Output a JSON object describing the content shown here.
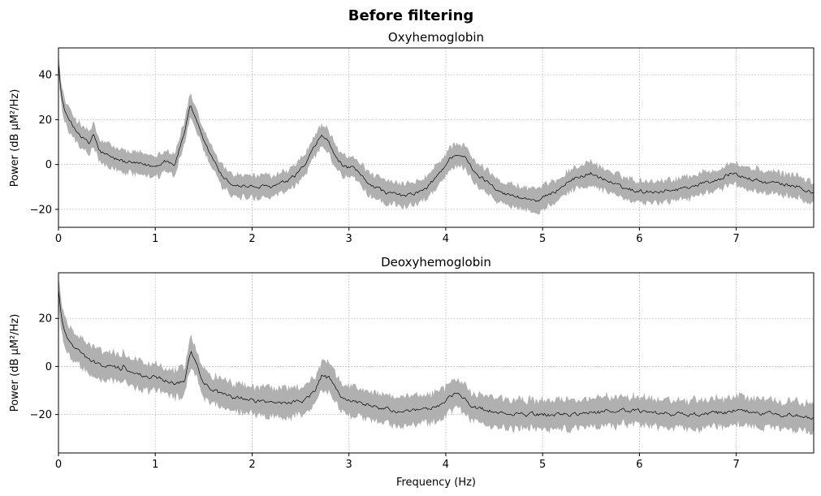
{
  "figure": {
    "suptitle": "Before filtering",
    "xlabel": "Frequency (Hz)"
  },
  "chart_data": [
    {
      "type": "line",
      "title": "Oxyhemoglobin",
      "xlabel": "",
      "ylabel": "Power (dB µM²/Hz)",
      "xlim": [
        0,
        7.8
      ],
      "ylim": [
        -28,
        52
      ],
      "xticks": [
        0,
        1,
        2,
        3,
        4,
        5,
        6,
        7
      ],
      "yticks": [
        -20,
        0,
        20,
        40
      ],
      "grid": true,
      "line_color": "#000000",
      "band_color": "#b0b0b0",
      "series_mean": {
        "x": [
          0,
          0.03,
          0.08,
          0.15,
          0.25,
          0.32,
          0.36,
          0.42,
          0.55,
          0.7,
          0.85,
          1.0,
          1.1,
          1.2,
          1.3,
          1.36,
          1.4,
          1.5,
          1.6,
          1.7,
          1.8,
          2.0,
          2.2,
          2.4,
          2.55,
          2.65,
          2.72,
          2.78,
          2.85,
          2.95,
          3.05,
          3.2,
          3.4,
          3.6,
          3.8,
          3.95,
          4.05,
          4.12,
          4.2,
          4.3,
          4.45,
          4.6,
          4.8,
          4.95,
          5.1,
          5.25,
          5.4,
          5.5,
          5.65,
          5.8,
          6.0,
          6.2,
          6.4,
          6.6,
          6.8,
          6.95,
          7.1,
          7.3,
          7.5,
          7.65,
          7.8
        ],
        "y": [
          46,
          30,
          22,
          17,
          12,
          9,
          14,
          6,
          3,
          1,
          0,
          -1,
          2,
          0,
          14,
          27,
          22,
          10,
          2,
          -6,
          -9,
          -10,
          -10,
          -7,
          0,
          8,
          13,
          11,
          4,
          -1,
          -2,
          -8,
          -13,
          -14,
          -11,
          -3,
          3,
          5,
          3,
          -4,
          -8,
          -13,
          -15,
          -16,
          -13,
          -8,
          -5,
          -4,
          -7,
          -10,
          -12,
          -12,
          -11,
          -9,
          -7,
          -4,
          -6,
          -8,
          -9,
          -10,
          -13
        ]
      },
      "band_halfwidth": 5
    },
    {
      "type": "line",
      "title": "Deoxyhemoglobin",
      "xlabel": "Frequency (Hz)",
      "ylabel": "Power (dB µM²/Hz)",
      "xlim": [
        0,
        7.8
      ],
      "ylim": [
        -36,
        39
      ],
      "xticks": [
        0,
        1,
        2,
        3,
        4,
        5,
        6,
        7
      ],
      "yticks": [
        -20,
        0,
        20
      ],
      "grid": true,
      "line_color": "#000000",
      "band_color": "#b0b0b0",
      "series_mean": {
        "x": [
          0,
          0.03,
          0.08,
          0.15,
          0.25,
          0.35,
          0.5,
          0.65,
          0.67,
          0.75,
          0.9,
          1.05,
          1.2,
          1.3,
          1.37,
          1.42,
          1.5,
          1.65,
          1.8,
          2.0,
          2.2,
          2.4,
          2.55,
          2.65,
          2.72,
          2.8,
          2.9,
          3.0,
          3.2,
          3.4,
          3.6,
          3.8,
          3.95,
          4.05,
          4.1,
          4.2,
          4.3,
          4.5,
          4.7,
          5.0,
          5.3,
          5.6,
          5.8,
          6.0,
          6.3,
          6.6,
          6.9,
          7.0,
          7.2,
          7.5,
          7.7,
          7.8
        ],
        "y": [
          32,
          20,
          13,
          9,
          5,
          2,
          0,
          -1,
          1,
          -3,
          -4,
          -5,
          -7,
          -6,
          7,
          2,
          -7,
          -11,
          -13,
          -14,
          -15,
          -15,
          -14,
          -10,
          -4,
          -5,
          -12,
          -14,
          -16,
          -18,
          -19,
          -18,
          -16,
          -12,
          -11,
          -14,
          -17,
          -19,
          -20,
          -20,
          -20,
          -19,
          -18,
          -19,
          -20,
          -20,
          -19,
          -18,
          -19,
          -20,
          -21,
          -22
        ]
      },
      "band_halfwidth": 6
    }
  ]
}
